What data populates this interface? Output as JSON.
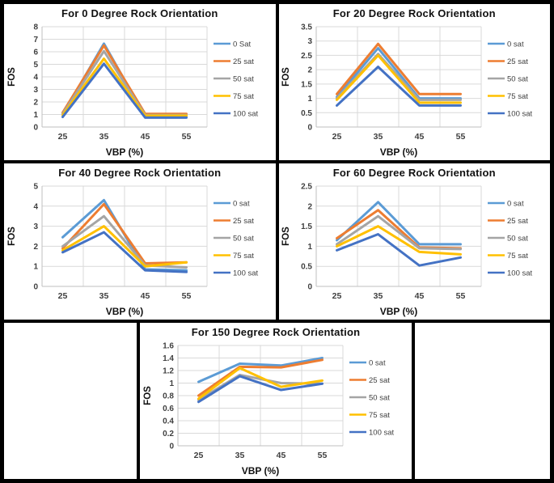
{
  "page": {
    "background": "#ffffff",
    "border_color": "#000000",
    "gridline_color": "#d9d9d9",
    "axis_color": "#bfbfbf",
    "tick_text_color": "#3f3f3f"
  },
  "chart_data": [
    {
      "type": "line",
      "title": "For 0 Degree Rock Orientation",
      "xlabel": "VBP (%)",
      "ylabel": "FOS",
      "categories": [
        "25",
        "35",
        "45",
        "55"
      ],
      "ylim": [
        0,
        8
      ],
      "yticks": [
        0,
        1,
        2,
        3,
        4,
        5,
        6,
        7,
        8
      ],
      "grid": true,
      "legend_position": "right",
      "series": [
        {
          "name": "0 Sat",
          "color": "#5B9BD5",
          "values": [
            1.0,
            6.65,
            0.85,
            0.85
          ]
        },
        {
          "name": "25 sat",
          "color": "#ED7D31",
          "values": [
            1.15,
            6.5,
            1.05,
            1.05
          ]
        },
        {
          "name": "50 sat",
          "color": "#A5A5A5",
          "values": [
            1.05,
            6.05,
            0.95,
            0.95
          ]
        },
        {
          "name": "75 sat",
          "color": "#FFC000",
          "values": [
            0.95,
            5.45,
            0.9,
            0.9
          ]
        },
        {
          "name": "100 sat",
          "color": "#4472C4",
          "values": [
            0.8,
            5.05,
            0.75,
            0.75
          ]
        }
      ]
    },
    {
      "type": "line",
      "title": "For 20 Degree Rock Orientation",
      "xlabel": "VBP (%)",
      "ylabel": "FOS",
      "categories": [
        "25",
        "35",
        "45",
        "55"
      ],
      "ylim": [
        0,
        3.5
      ],
      "yticks": [
        0,
        0.5,
        1,
        1.5,
        2,
        2.5,
        3,
        3.5
      ],
      "grid": true,
      "legend_position": "right",
      "series": [
        {
          "name": "0 sat",
          "color": "#5B9BD5",
          "values": [
            1.05,
            2.75,
            1.0,
            1.0
          ]
        },
        {
          "name": "25 sat",
          "color": "#ED7D31",
          "values": [
            1.15,
            2.9,
            1.15,
            1.15
          ]
        },
        {
          "name": "50 sat",
          "color": "#A5A5A5",
          "values": [
            1.0,
            2.55,
            0.95,
            0.95
          ]
        },
        {
          "name": "75 sat",
          "color": "#FFC000",
          "values": [
            0.95,
            2.5,
            0.85,
            0.85
          ]
        },
        {
          "name": "100 sat",
          "color": "#4472C4",
          "values": [
            0.75,
            2.1,
            0.75,
            0.75
          ]
        }
      ]
    },
    {
      "type": "line",
      "title": "For 40 Degree Rock Orientation",
      "xlabel": "VBP (%)",
      "ylabel": "FOS",
      "categories": [
        "25",
        "35",
        "45",
        "55"
      ],
      "ylim": [
        0,
        5
      ],
      "yticks": [
        0,
        1,
        2,
        3,
        4,
        5
      ],
      "grid": true,
      "legend_position": "right",
      "series": [
        {
          "name": "0 sat",
          "color": "#5B9BD5",
          "values": [
            2.45,
            4.3,
            0.85,
            0.8
          ]
        },
        {
          "name": "25 sat",
          "color": "#ED7D31",
          "values": [
            1.9,
            4.1,
            1.15,
            1.2
          ]
        },
        {
          "name": "50 sat",
          "color": "#A5A5A5",
          "values": [
            2.0,
            3.5,
            1.05,
            0.95
          ]
        },
        {
          "name": "75 sat",
          "color": "#FFC000",
          "values": [
            1.8,
            3.0,
            1.0,
            1.2
          ]
        },
        {
          "name": "100 sat",
          "color": "#4472C4",
          "values": [
            1.7,
            2.7,
            0.8,
            0.72
          ]
        }
      ]
    },
    {
      "type": "line",
      "title": "For 60 Degree Rock Orientation",
      "xlabel": "VBP (%)",
      "ylabel": "FOS",
      "categories": [
        "25",
        "35",
        "45",
        "55"
      ],
      "ylim": [
        0,
        2.5
      ],
      "yticks": [
        0,
        0.5,
        1,
        1.5,
        2,
        2.5
      ],
      "grid": true,
      "legend_position": "right",
      "series": [
        {
          "name": "0 sat",
          "color": "#5B9BD5",
          "values": [
            1.15,
            2.1,
            1.05,
            1.05
          ]
        },
        {
          "name": "25 sat",
          "color": "#ED7D31",
          "values": [
            1.2,
            1.9,
            0.97,
            0.95
          ]
        },
        {
          "name": "50 sat",
          "color": "#A5A5A5",
          "values": [
            1.05,
            1.75,
            0.95,
            0.93
          ]
        },
        {
          "name": "75 sat",
          "color": "#FFC000",
          "values": [
            1.0,
            1.5,
            0.86,
            0.8
          ]
        },
        {
          "name": "100 sat",
          "color": "#4472C4",
          "values": [
            0.9,
            1.3,
            0.52,
            0.72
          ]
        }
      ]
    },
    {
      "type": "line",
      "title": "For 150 Degree Rock Orientation",
      "xlabel": "VBP (%)",
      "ylabel": "FOS",
      "categories": [
        "25",
        "35",
        "45",
        "55"
      ],
      "ylim": [
        0,
        1.6
      ],
      "yticks": [
        0,
        0.2,
        0.4,
        0.6,
        0.8,
        1,
        1.2,
        1.4,
        1.6
      ],
      "grid": true,
      "legend_position": "right",
      "series": [
        {
          "name": "0 sat",
          "color": "#5B9BD5",
          "values": [
            1.02,
            1.31,
            1.28,
            1.4
          ]
        },
        {
          "name": "25 sat",
          "color": "#ED7D31",
          "values": [
            0.8,
            1.26,
            1.25,
            1.37
          ]
        },
        {
          "name": "50 sat",
          "color": "#A5A5A5",
          "values": [
            0.73,
            1.13,
            1.0,
            0.99
          ]
        },
        {
          "name": "75 sat",
          "color": "#FFC000",
          "values": [
            0.75,
            1.24,
            0.94,
            1.04
          ]
        },
        {
          "name": "100 sat",
          "color": "#4472C4",
          "values": [
            0.7,
            1.11,
            0.89,
            0.99
          ]
        }
      ]
    }
  ]
}
